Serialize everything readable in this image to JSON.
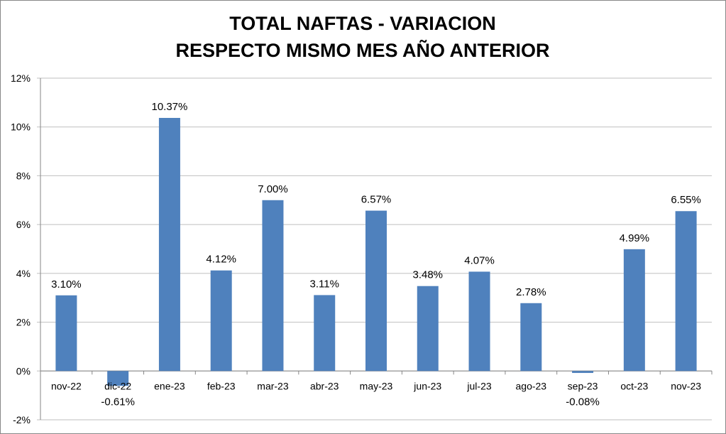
{
  "chart_data": {
    "type": "bar",
    "title": [
      "TOTAL NAFTAS - VARIACION",
      "RESPECTO MISMO MES AÑO ANTERIOR"
    ],
    "xlabel": "",
    "ylabel": "",
    "categories": [
      "nov-22",
      "dic-22",
      "ene-23",
      "feb-23",
      "mar-23",
      "abr-23",
      "may-23",
      "jun-23",
      "jul-23",
      "ago-23",
      "sep-23",
      "oct-23",
      "nov-23"
    ],
    "values": [
      3.1,
      -0.61,
      10.37,
      4.12,
      7.0,
      3.11,
      6.57,
      3.48,
      4.07,
      2.78,
      -0.08,
      4.99,
      6.55
    ],
    "data_labels": [
      "3.10%",
      "-0.61%",
      "10.37%",
      "4.12%",
      "7.00%",
      "3.11%",
      "6.57%",
      "3.48%",
      "4.07%",
      "2.78%",
      "-0.08%",
      "4.99%",
      "6.55%"
    ],
    "ylim": [
      -2,
      12
    ],
    "yticks": [
      -2,
      0,
      2,
      4,
      6,
      8,
      10,
      12
    ],
    "ytick_labels": [
      "-2%",
      "0%",
      "2%",
      "4%",
      "6%",
      "8%",
      "10%",
      "12%"
    ],
    "grid": true,
    "legend": "none",
    "bar_color": "#4F81BD"
  }
}
